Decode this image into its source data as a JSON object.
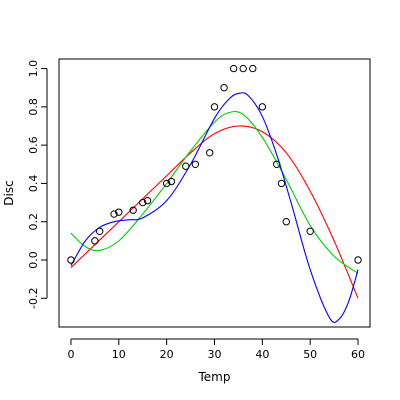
{
  "chart_data": {
    "type": "scatter",
    "xlabel": "Temp",
    "ylabel": "Disc",
    "xlim": [
      -2.5,
      62.5
    ],
    "ylim": [
      -0.35,
      1.05
    ],
    "xticks": [
      0,
      10,
      20,
      30,
      40,
      50,
      60
    ],
    "yticks": [
      -0.2,
      0.0,
      0.2,
      0.4,
      0.6,
      0.8,
      1.0
    ],
    "xtick_labels": [
      "0",
      "10",
      "20",
      "30",
      "40",
      "50",
      "60"
    ],
    "ytick_labels": [
      "-0.2",
      "0.0",
      "0.2",
      "0.4",
      "0.6",
      "0.8",
      "1.0"
    ],
    "grid": false,
    "points": {
      "x": [
        0,
        5,
        6,
        9,
        10,
        13,
        15,
        16,
        20,
        21,
        24,
        26,
        29,
        30,
        32,
        34,
        36,
        38,
        40,
        43,
        44,
        45,
        50,
        60
      ],
      "y": [
        0.0,
        0.1,
        0.15,
        0.24,
        0.25,
        0.26,
        0.3,
        0.31,
        0.4,
        0.41,
        0.49,
        0.5,
        0.56,
        0.8,
        0.9,
        1.0,
        1.0,
        1.0,
        0.8,
        0.5,
        0.4,
        0.2,
        0.15,
        0.0
      ]
    },
    "series": [
      {
        "color": "#ff0000",
        "x": [
          0,
          5,
          10,
          15,
          20,
          25,
          30,
          35,
          40,
          45,
          50,
          55,
          60
        ],
        "y": [
          -0.04,
          0.08,
          0.2,
          0.32,
          0.44,
          0.56,
          0.66,
          0.7,
          0.67,
          0.56,
          0.36,
          0.1,
          -0.2
        ]
      },
      {
        "color": "#00cc00",
        "x": [
          0,
          3,
          6,
          10,
          15,
          20,
          25,
          30,
          33,
          36,
          40,
          45,
          50,
          55,
          60
        ],
        "y": [
          0.14,
          0.07,
          0.05,
          0.1,
          0.24,
          0.4,
          0.57,
          0.72,
          0.77,
          0.76,
          0.64,
          0.42,
          0.18,
          0.02,
          -0.07
        ]
      },
      {
        "color": "#0000ff",
        "x": [
          0,
          3,
          6,
          9,
          12,
          15,
          20,
          25,
          30,
          33,
          35,
          37,
          40,
          43,
          46,
          50,
          54,
          56,
          58,
          60
        ],
        "y": [
          -0.03,
          0.1,
          0.17,
          0.2,
          0.21,
          0.22,
          0.31,
          0.5,
          0.74,
          0.84,
          0.87,
          0.86,
          0.75,
          0.55,
          0.3,
          -0.05,
          -0.3,
          -0.31,
          -0.22,
          -0.05
        ]
      }
    ]
  }
}
